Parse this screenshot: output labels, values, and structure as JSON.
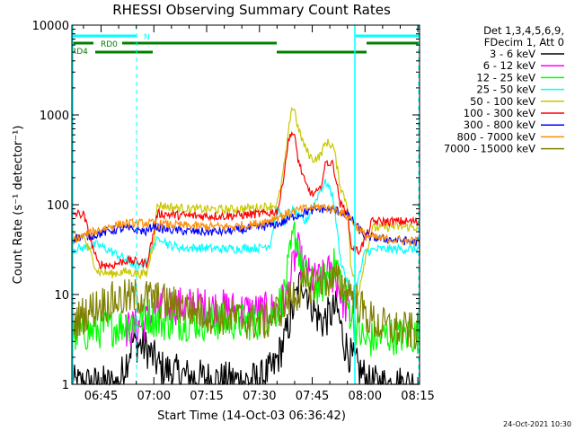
{
  "chart_data": {
    "type": "line",
    "title": "RHESSI Observing Summary Count Rates",
    "xlabel": "Start Time (14-Oct-03 06:36:42)",
    "ylabel": "Count Rate (s⁻¹ detector⁻¹)",
    "ylog": true,
    "xlim": [
      36.7,
      135.5
    ],
    "ylim": [
      1,
      10000
    ],
    "x_ticks": [
      {
        "t": 45,
        "label": "06:45"
      },
      {
        "t": 60,
        "label": "07:00"
      },
      {
        "t": 75,
        "label": "07:15"
      },
      {
        "t": 90,
        "label": "07:30"
      },
      {
        "t": 105,
        "label": "07:45"
      },
      {
        "t": 120,
        "label": "08:00"
      },
      {
        "t": 135,
        "label": "08:15"
      }
    ],
    "y_ticks": [
      {
        "v": 1,
        "label": "1"
      },
      {
        "v": 10,
        "label": "10"
      },
      {
        "v": 100,
        "label": "100"
      },
      {
        "v": 1000,
        "label": "1000"
      },
      {
        "v": 10000,
        "label": "10000"
      }
    ],
    "legend_header": [
      "Det 1,3,4,5,6,9,",
      "FDecim 1, Att 0"
    ],
    "legend_position": "right",
    "series": [
      {
        "name": "3 - 6 keV",
        "color": "#000000",
        "points": [
          [
            36.7,
            1
          ],
          [
            45,
            1
          ],
          [
            50,
            1
          ],
          [
            54,
            3
          ],
          [
            58,
            2.5
          ],
          [
            62,
            1.5
          ],
          [
            70,
            1.2
          ],
          [
            80,
            1.1
          ],
          [
            90,
            1.1
          ],
          [
            94,
            1.5
          ],
          [
            97,
            3
          ],
          [
            100,
            8
          ],
          [
            102,
            15
          ],
          [
            104,
            10
          ],
          [
            106,
            6
          ],
          [
            108,
            5
          ],
          [
            110,
            6
          ],
          [
            112,
            7
          ],
          [
            114,
            3
          ],
          [
            116,
            2
          ],
          [
            118,
            1.5
          ],
          [
            120,
            1.2
          ],
          [
            121,
            1
          ],
          [
            135.5,
            1
          ]
        ]
      },
      {
        "name": "6 - 12 keV",
        "color": "#ff00ff",
        "points": [
          [
            52,
            4
          ],
          [
            56,
            4.5
          ],
          [
            59,
            5.5
          ],
          [
            62,
            7.5
          ],
          [
            70,
            7.5
          ],
          [
            80,
            7
          ],
          [
            88,
            6.5
          ],
          [
            92,
            6.5
          ],
          [
            95,
            7
          ],
          [
            98,
            10
          ],
          [
            100,
            25
          ],
          [
            101,
            30
          ],
          [
            102,
            22
          ],
          [
            104,
            16
          ],
          [
            106,
            14
          ],
          [
            108,
            15
          ],
          [
            110,
            18
          ],
          [
            112,
            14
          ],
          [
            114,
            8
          ],
          [
            116,
            6
          ]
        ]
      },
      {
        "name": "12 - 25 keV",
        "color": "#00ff00",
        "points": [
          [
            36.7,
            3.5
          ],
          [
            44,
            4
          ],
          [
            50,
            4.5
          ],
          [
            54,
            5
          ],
          [
            58,
            6
          ],
          [
            62,
            5
          ],
          [
            70,
            5
          ],
          [
            80,
            5
          ],
          [
            90,
            5
          ],
          [
            94,
            6
          ],
          [
            97,
            10
          ],
          [
            99,
            30
          ],
          [
            100,
            50
          ],
          [
            101,
            35
          ],
          [
            102,
            20
          ],
          [
            104,
            14
          ],
          [
            106,
            12
          ],
          [
            108,
            13
          ],
          [
            110,
            18
          ],
          [
            112,
            22
          ],
          [
            114,
            10
          ],
          [
            116,
            6
          ],
          [
            118,
            4
          ],
          [
            120,
            3
          ],
          [
            126,
            3.5
          ],
          [
            135.5,
            3.5
          ]
        ]
      },
      {
        "name": "25 - 50 keV",
        "color": "#00ffff",
        "points": [
          [
            36.7,
            32
          ],
          [
            40,
            33
          ],
          [
            44,
            36
          ],
          [
            48,
            30
          ],
          [
            51,
            26
          ],
          [
            54,
            22
          ],
          [
            56,
            20
          ],
          [
            58,
            24
          ],
          [
            60,
            36
          ],
          [
            62,
            44
          ],
          [
            64,
            36
          ],
          [
            68,
            33
          ],
          [
            74,
            33
          ],
          [
            80,
            32
          ],
          [
            86,
            33
          ],
          [
            90,
            33
          ],
          [
            93,
            36
          ],
          [
            95,
            90
          ],
          [
            97,
            65
          ],
          [
            99,
            90
          ],
          [
            101,
            75
          ],
          [
            103,
            64
          ],
          [
            105,
            90
          ],
          [
            107,
            140
          ],
          [
            109,
            180
          ],
          [
            111,
            120
          ],
          [
            113,
            25
          ],
          [
            116,
            10
          ],
          [
            118,
            14
          ],
          [
            120,
            30
          ],
          [
            124,
            32
          ],
          [
            130,
            32
          ],
          [
            135.5,
            32
          ]
        ]
      },
      {
        "name": "50 - 100 keV",
        "color": "#c8c800",
        "points": [
          [
            36.7,
            44
          ],
          [
            40,
            45
          ],
          [
            44,
            18
          ],
          [
            48,
            17
          ],
          [
            52,
            18
          ],
          [
            56,
            17
          ],
          [
            58,
            17
          ],
          [
            60,
            40
          ],
          [
            61,
            100
          ],
          [
            64,
            95
          ],
          [
            70,
            90
          ],
          [
            80,
            88
          ],
          [
            88,
            92
          ],
          [
            92,
            95
          ],
          [
            95,
            100
          ],
          [
            96,
            150
          ],
          [
            98,
            500
          ],
          [
            99,
            1200
          ],
          [
            100,
            1150
          ],
          [
            101,
            700
          ],
          [
            103,
            430
          ],
          [
            105,
            320
          ],
          [
            107,
            340
          ],
          [
            109,
            500
          ],
          [
            111,
            450
          ],
          [
            113,
            160
          ],
          [
            115,
            100
          ],
          [
            116,
            20
          ],
          [
            118,
            10
          ],
          [
            120,
            25
          ],
          [
            122,
            55
          ],
          [
            128,
            57
          ],
          [
            135.5,
            56
          ]
        ]
      },
      {
        "name": "100 - 300 keV",
        "color": "#ff0000",
        "points": [
          [
            36.7,
            80
          ],
          [
            40,
            78
          ],
          [
            44,
            22
          ],
          [
            48,
            21
          ],
          [
            52,
            24
          ],
          [
            56,
            23
          ],
          [
            58,
            22
          ],
          [
            60,
            50
          ],
          [
            61,
            80
          ],
          [
            64,
            78
          ],
          [
            70,
            75
          ],
          [
            80,
            75
          ],
          [
            88,
            78
          ],
          [
            92,
            80
          ],
          [
            95,
            85
          ],
          [
            96,
            120
          ],
          [
            98,
            450
          ],
          [
            99,
            660
          ],
          [
            100,
            560
          ],
          [
            101,
            320
          ],
          [
            103,
            170
          ],
          [
            105,
            130
          ],
          [
            107,
            140
          ],
          [
            109,
            300
          ],
          [
            111,
            280
          ],
          [
            113,
            100
          ],
          [
            115,
            85
          ],
          [
            116,
            35
          ],
          [
            118,
            30
          ],
          [
            120,
            40
          ],
          [
            122,
            65
          ],
          [
            128,
            65
          ],
          [
            135.5,
            65
          ]
        ]
      },
      {
        "name": "300 - 800 keV",
        "color": "#0000ff",
        "points": [
          [
            36.7,
            42
          ],
          [
            40,
            44
          ],
          [
            44,
            47
          ],
          [
            48,
            52
          ],
          [
            52,
            54
          ],
          [
            56,
            52
          ],
          [
            58,
            50
          ],
          [
            60,
            60
          ],
          [
            62,
            54
          ],
          [
            66,
            52
          ],
          [
            72,
            50
          ],
          [
            78,
            50
          ],
          [
            84,
            52
          ],
          [
            88,
            55
          ],
          [
            92,
            58
          ],
          [
            96,
            62
          ],
          [
            100,
            75
          ],
          [
            104,
            85
          ],
          [
            108,
            90
          ],
          [
            112,
            86
          ],
          [
            114,
            80
          ],
          [
            116,
            70
          ],
          [
            118,
            55
          ],
          [
            120,
            45
          ],
          [
            124,
            42
          ],
          [
            130,
            40
          ],
          [
            135.5,
            38
          ]
        ]
      },
      {
        "name": "800 - 7000 keV",
        "color": "#ff8c00",
        "points": [
          [
            36.7,
            40
          ],
          [
            40,
            45
          ],
          [
            44,
            52
          ],
          [
            48,
            58
          ],
          [
            52,
            62
          ],
          [
            56,
            62
          ],
          [
            60,
            62
          ],
          [
            64,
            60
          ],
          [
            70,
            58
          ],
          [
            76,
            57
          ],
          [
            82,
            57
          ],
          [
            88,
            60
          ],
          [
            92,
            66
          ],
          [
            96,
            75
          ],
          [
            100,
            85
          ],
          [
            104,
            92
          ],
          [
            108,
            95
          ],
          [
            112,
            88
          ],
          [
            116,
            70
          ],
          [
            118,
            55
          ],
          [
            120,
            45
          ],
          [
            124,
            42
          ],
          [
            130,
            40
          ],
          [
            135.5,
            39
          ]
        ]
      },
      {
        "name": "7000 - 15000 keV",
        "color": "#808000",
        "points": [
          [
            36.7,
            4.5
          ],
          [
            40,
            6
          ],
          [
            44,
            7.5
          ],
          [
            48,
            8.5
          ],
          [
            52,
            9
          ],
          [
            56,
            9.5
          ],
          [
            60,
            9
          ],
          [
            64,
            8
          ],
          [
            70,
            7
          ],
          [
            76,
            6
          ],
          [
            82,
            5.5
          ],
          [
            88,
            5
          ],
          [
            92,
            5
          ],
          [
            96,
            7
          ],
          [
            100,
            10
          ],
          [
            104,
            13
          ],
          [
            108,
            15
          ],
          [
            112,
            14
          ],
          [
            116,
            11
          ],
          [
            118,
            8
          ],
          [
            120,
            6
          ],
          [
            124,
            4.5
          ],
          [
            130,
            4
          ],
          [
            135.5,
            3.8
          ]
        ]
      }
    ],
    "flags": [
      {
        "label": "N",
        "color": "#00ffff"
      },
      {
        "label": "RD0",
        "color": "#008000"
      },
      {
        "label": "RD4",
        "color": "#008000"
      }
    ]
  },
  "timestamp": "24-Oct-2021 10:30"
}
